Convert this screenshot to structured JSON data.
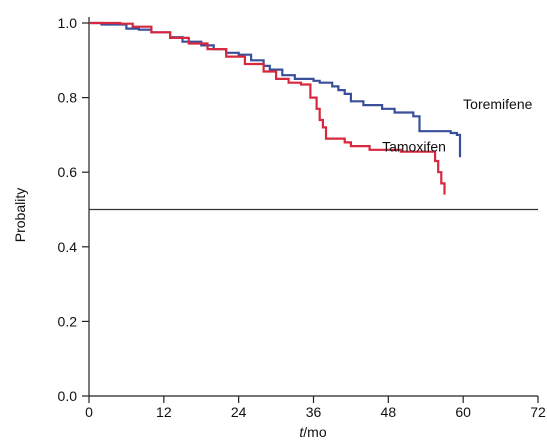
{
  "chart_data": {
    "type": "line",
    "title": "",
    "xlabel_italic": "t",
    "xlabel_rest": "/mo",
    "ylabel": "Probality",
    "xlim": [
      0,
      72
    ],
    "ylim": [
      0,
      1.0
    ],
    "xticks": [
      0,
      12,
      24,
      36,
      48,
      60,
      72
    ],
    "xtick_labels": [
      "0",
      "12",
      "24",
      "36",
      "48",
      "60",
      "72"
    ],
    "yticks": [
      0.0,
      0.2,
      0.4,
      0.6,
      0.8,
      1.0
    ],
    "ytick_labels": [
      "0.0",
      "0.2",
      "0.4",
      "0.6",
      "0.8",
      "1.0"
    ],
    "grid": false,
    "reference_line": {
      "y": 0.5,
      "color": "#333333"
    },
    "series": [
      {
        "name": "Toremifene",
        "color": "#3a4f9a",
        "step": true,
        "x": [
          0,
          2,
          6,
          8,
          10,
          13,
          15,
          18,
          20,
          22,
          24,
          26,
          28,
          29,
          31,
          33,
          36,
          37,
          39,
          40,
          41,
          42,
          44,
          47,
          49,
          52,
          53,
          55,
          58,
          59,
          59.5
        ],
        "y": [
          1.0,
          0.996,
          0.985,
          0.982,
          0.975,
          0.962,
          0.95,
          0.94,
          0.93,
          0.92,
          0.915,
          0.9,
          0.885,
          0.875,
          0.86,
          0.85,
          0.845,
          0.84,
          0.83,
          0.82,
          0.81,
          0.79,
          0.78,
          0.77,
          0.76,
          0.75,
          0.71,
          0.71,
          0.705,
          0.7,
          0.64
        ]
      },
      {
        "name": "Tamoxifen",
        "color": "#d8283f",
        "step": true,
        "x": [
          0,
          3,
          5,
          7,
          10,
          13,
          16,
          19,
          22,
          25,
          28,
          30,
          32,
          34,
          35.5,
          36.5,
          37,
          37.5,
          38,
          41,
          42,
          45,
          50,
          55,
          55.5,
          56,
          56.5,
          57
        ],
        "y": [
          1.0,
          1.0,
          0.998,
          0.99,
          0.975,
          0.96,
          0.945,
          0.93,
          0.91,
          0.89,
          0.87,
          0.85,
          0.84,
          0.835,
          0.8,
          0.77,
          0.74,
          0.72,
          0.69,
          0.68,
          0.67,
          0.66,
          0.655,
          0.655,
          0.63,
          0.6,
          0.57,
          0.54
        ]
      }
    ],
    "annotations": [
      {
        "text": "Toremifene",
        "x": 60,
        "y": 0.77
      },
      {
        "text": "Tamoxifen",
        "x": 47,
        "y": 0.655
      }
    ]
  }
}
